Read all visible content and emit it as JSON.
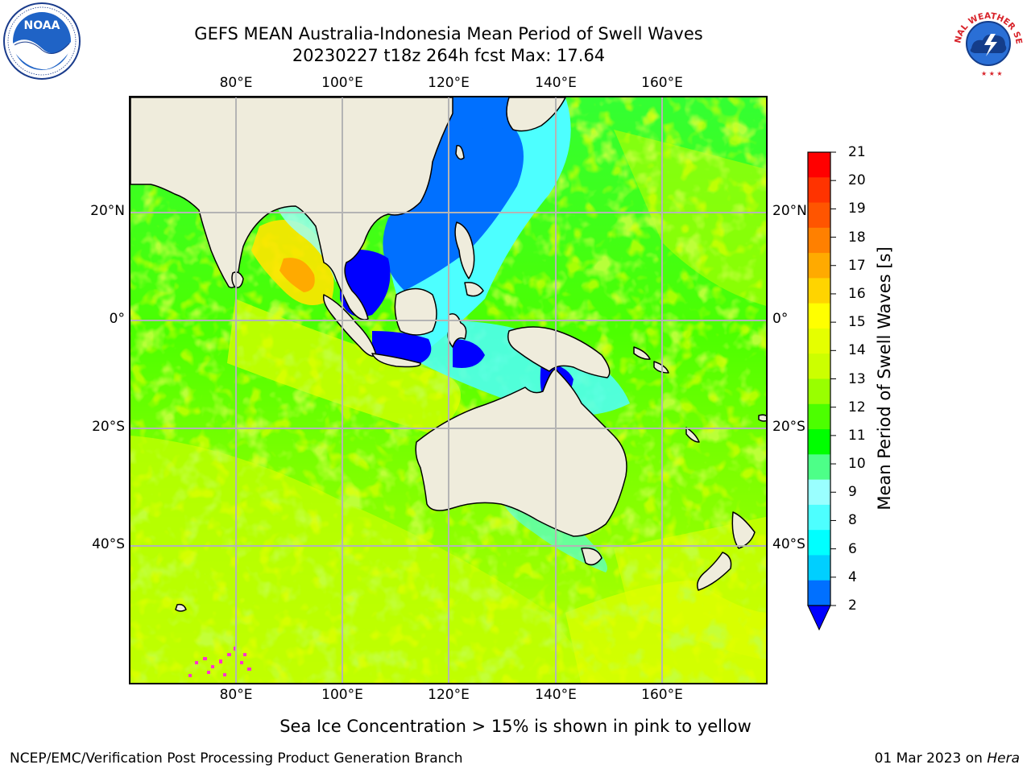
{
  "title": {
    "line1": "GEFS MEAN Australia-Indonesia Mean Period of Swell Waves",
    "line2": "20230227 t18z 264h fcst   Max: 17.64"
  },
  "map": {
    "lon_labels": [
      "80°E",
      "100°E",
      "120°E",
      "140°E",
      "160°E"
    ],
    "lat_labels": [
      "20°N",
      "0°",
      "20°S",
      "40°S"
    ],
    "land_color": "#efecdc",
    "grid_color": "#b4b4b4"
  },
  "colorbar": {
    "title": "Mean Period of Swell Waves [s]",
    "tick_labels": [
      "21",
      "20",
      "19",
      "18",
      "17",
      "16",
      "15",
      "14",
      "13",
      "12",
      "11",
      "10",
      "9",
      "8",
      "6",
      "4",
      "2"
    ],
    "colors": [
      "#ff0000",
      "#ff3300",
      "#ff5500",
      "#ff8000",
      "#ffaa00",
      "#ffd400",
      "#ffff00",
      "#e5ff00",
      "#ccff00",
      "#99ff00",
      "#4cff00",
      "#00ff00",
      "#4dff88",
      "#9affff",
      "#4dffff",
      "#00ffff",
      "#00cfff",
      "#0070ff"
    ],
    "under_color": "#0000ff"
  },
  "note": "Sea Ice Concentration > 15% is shown in pink to yellow",
  "credit_left": "NCEP/EMC/Verification Post Processing Product Generation Branch",
  "credit_right": {
    "date": "01 Mar 2023 on",
    "machine": "Hera"
  },
  "logos": {
    "noaa_text": "NOAA",
    "nws_text": "NATIONAL WEATHER SERVICE"
  }
}
